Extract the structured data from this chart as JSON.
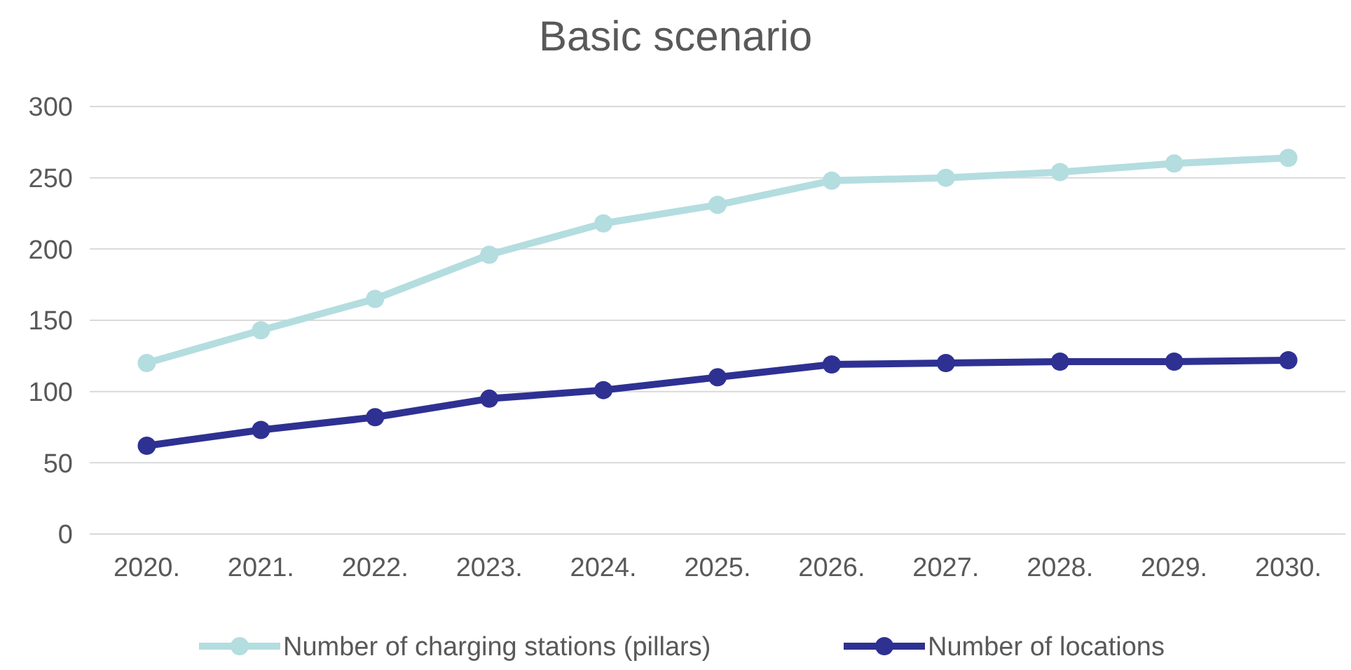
{
  "chart_data": {
    "type": "line",
    "title": "Basic scenario",
    "categories": [
      "2020.",
      "2021.",
      "2022.",
      "2023.",
      "2024.",
      "2025.",
      "2026.",
      "2027.",
      "2028.",
      "2029.",
      "2030."
    ],
    "series": [
      {
        "name": "Number of charging stations (pillars)",
        "color": "#b4dde0",
        "values": [
          120,
          143,
          165,
          196,
          218,
          231,
          248,
          250,
          254,
          260,
          264
        ]
      },
      {
        "name": "Number of locations",
        "color": "#2e3192",
        "values": [
          62,
          73,
          82,
          95,
          101,
          110,
          119,
          120,
          121,
          121,
          122
        ]
      }
    ],
    "ylim": [
      0,
      300
    ],
    "yticks": [
      0,
      50,
      100,
      150,
      200,
      250,
      300
    ],
    "grid": "y",
    "legend": "bottom",
    "marker": "circle",
    "line_style": "solid"
  }
}
